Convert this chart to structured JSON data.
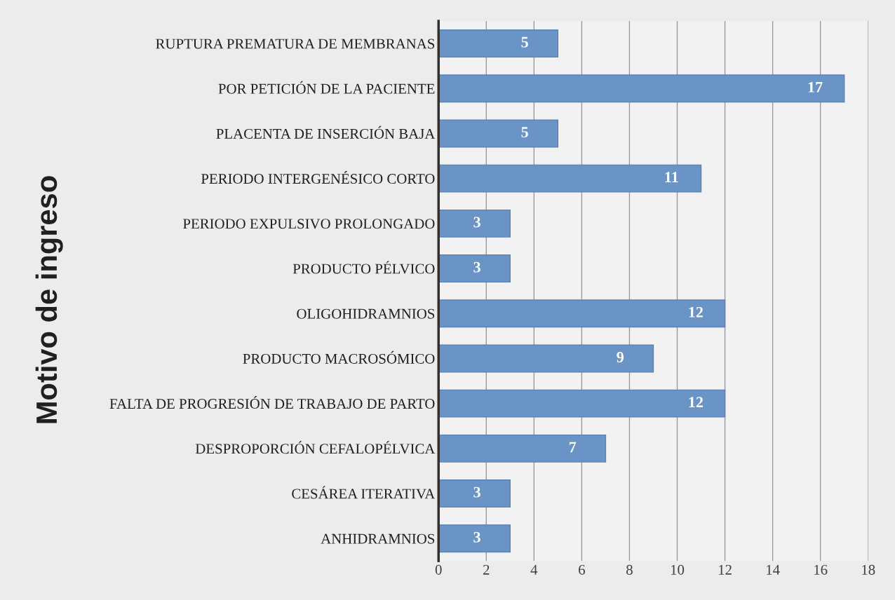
{
  "chart_data": {
    "type": "bar",
    "orientation": "horizontal",
    "ylabel": "Motivo de ingreso",
    "categories": [
      "RUPTURA PREMATURA DE MEMBRANAS",
      "POR PETICIÓN DE LA PACIENTE",
      "PLACENTA DE INSERCIÓN BAJA",
      "PERIODO INTERGENÉSICO CORTO",
      "PERIODO EXPULSIVO PROLONGADO",
      "PRODUCTO PÉLVICO",
      "OLIGOHIDRAMNIOS",
      "PRODUCTO MACROSÓMICO",
      "FALTA DE PROGRESIÓN DE TRABAJO DE PARTO",
      "DESPROPORCIÓN CEFALOPÉLVICA",
      "CESÁREA ITERATIVA",
      "ANHIDRAMNIOS"
    ],
    "values": [
      5,
      17,
      5,
      11,
      3,
      3,
      12,
      9,
      12,
      7,
      3,
      3
    ],
    "color": "#6a93c6",
    "xlim": [
      0,
      18
    ],
    "xticks": [
      0,
      2,
      4,
      6,
      8,
      10,
      12,
      14,
      16,
      18
    ],
    "grid": "x",
    "data_labels": true
  }
}
